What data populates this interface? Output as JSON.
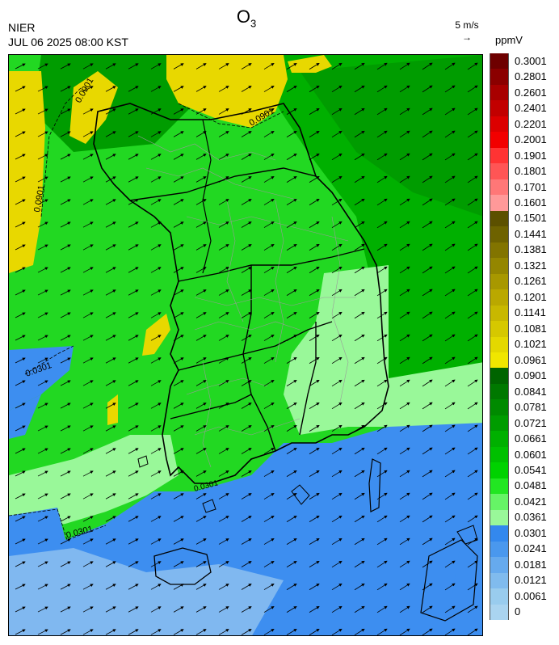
{
  "header": {
    "title_main": "O",
    "title_sub": "3",
    "agency": "NIER",
    "timestamp": "JUL 06 2025 08:00 KST",
    "wind_reference": "5 m/s",
    "unit": "ppmV"
  },
  "contour_labels": {
    "c1": "0.0901",
    "c2": "0.0901",
    "c3": "0.0901",
    "c4": "0.0301",
    "c5": "0.0301",
    "c6": "0.0301"
  },
  "legend": {
    "labels": [
      "0.3001",
      "0.2801",
      "0.2601",
      "0.2401",
      "0.2201",
      "0.2001",
      "0.1901",
      "0.1801",
      "0.1701",
      "0.1601",
      "0.1501",
      "0.1441",
      "0.1381",
      "0.1321",
      "0.1261",
      "0.1201",
      "0.1141",
      "0.1081",
      "0.1021",
      "0.0961",
      "0.0901",
      "0.0841",
      "0.0781",
      "0.0721",
      "0.0661",
      "0.0601",
      "0.0541",
      "0.0481",
      "0.0421",
      "0.0361",
      "0.0301",
      "0.0241",
      "0.0181",
      "0.0121",
      "0.0061",
      "0"
    ],
    "colors": [
      "#6e0000",
      "#8b0000",
      "#a80000",
      "#c20000",
      "#dc0000",
      "#f20000",
      "#ff3333",
      "#ff5555",
      "#ff7777",
      "#ff9999",
      "#5c5000",
      "#6e6200",
      "#827400",
      "#948600",
      "#a89800",
      "#baa800",
      "#c8b800",
      "#d6c800",
      "#e4d800",
      "#f0e600",
      "#006400",
      "#007800",
      "#008a00",
      "#009c00",
      "#00b000",
      "#00c000",
      "#00d200",
      "#22e622",
      "#66f466",
      "#99f899",
      "#3388ee",
      "#4a98ee",
      "#66aaee",
      "#80bbee",
      "#99ccee",
      "#aad4f0"
    ]
  },
  "map_colors": {
    "sea_blue": "#3d8ef0",
    "light_blue": "#80b8f0",
    "light_green": "#99f899",
    "green": "#22d822",
    "mid_green": "#00b000",
    "dark_green": "#008a00",
    "yellow": "#e8d800"
  }
}
